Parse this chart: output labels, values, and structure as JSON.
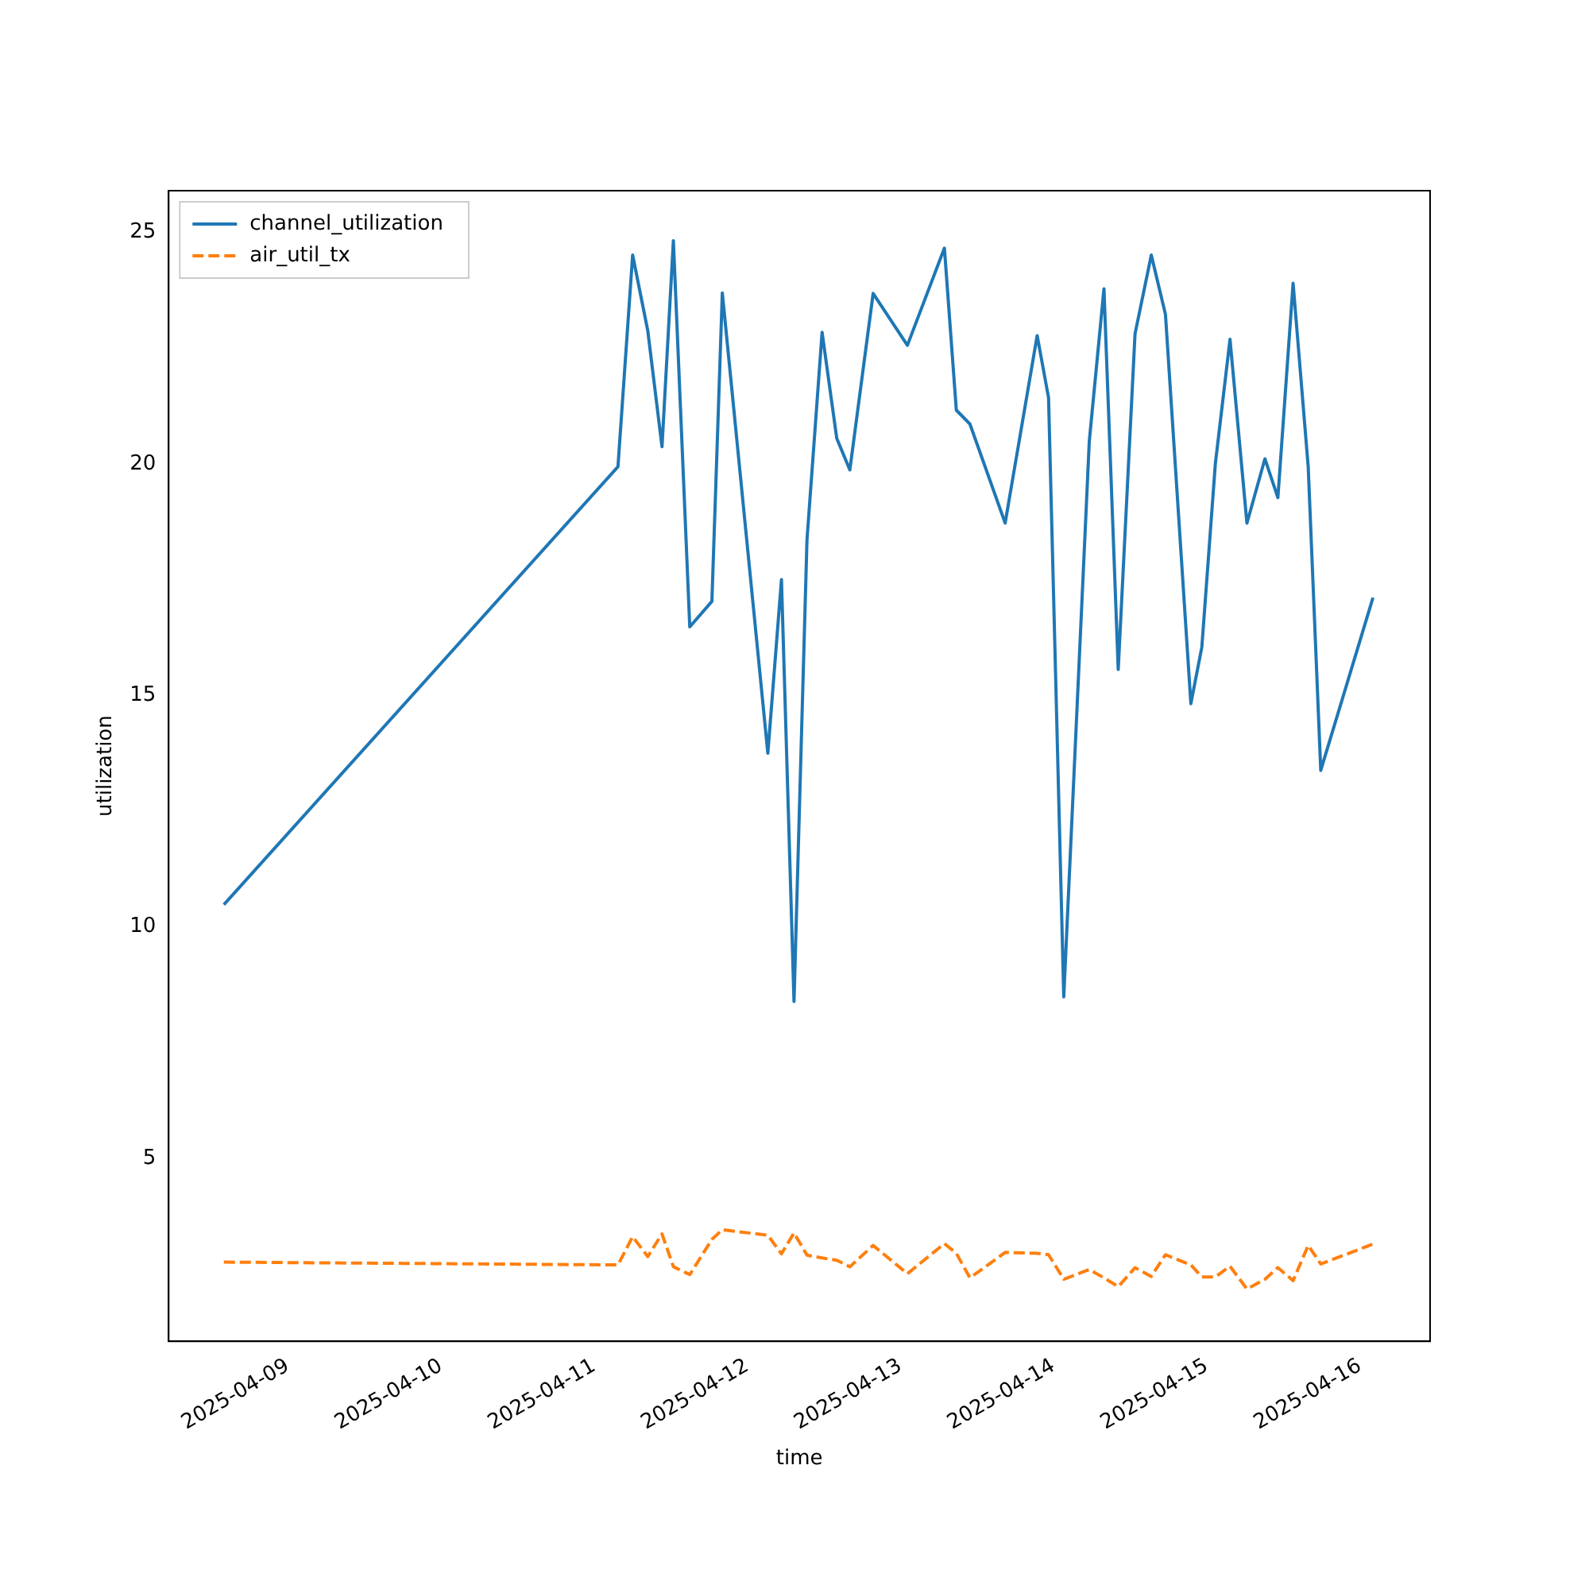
{
  "chart_data": {
    "type": "line",
    "xlabel": "time",
    "ylabel": "utilization",
    "x": [
      "2025-04-08T14:00",
      "2025-04-11T03:45",
      "2025-04-11T06:03",
      "2025-04-11T08:25",
      "2025-04-11T10:39",
      "2025-04-11T12:26",
      "2025-04-11T15:00",
      "2025-04-11T18:28",
      "2025-04-11T20:06",
      "2025-04-12T03:14",
      "2025-04-12T05:22",
      "2025-04-12T07:20",
      "2025-04-12T09:22",
      "2025-04-12T11:44",
      "2025-04-12T14:02",
      "2025-04-12T16:05",
      "2025-04-12T19:44",
      "2025-04-13T01:06",
      "2025-04-13T06:54",
      "2025-04-13T08:46",
      "2025-04-13T10:54",
      "2025-04-13T16:25",
      "2025-04-13T21:26",
      "2025-04-13T23:13",
      "2025-04-14T01:36",
      "2025-04-14T05:36",
      "2025-04-14T07:54",
      "2025-04-14T10:08",
      "2025-04-14T12:46",
      "2025-04-14T15:19",
      "2025-04-14T17:32",
      "2025-04-14T21:31",
      "2025-04-14T23:14",
      "2025-04-15T01:21",
      "2025-04-15T03:39",
      "2025-04-15T06:18",
      "2025-04-15T09:07",
      "2025-04-15T11:09",
      "2025-04-15T13:32",
      "2025-04-15T15:54",
      "2025-04-15T17:52",
      "2025-04-16T02:03"
    ],
    "series": [
      {
        "name": "channel_utilization",
        "color": "#1f77b4",
        "line_style": "solid",
        "values": [
          10.48,
          19.94,
          24.51,
          22.88,
          20.37,
          24.82,
          16.48,
          17.03,
          23.69,
          13.75,
          17.5,
          8.39,
          18.36,
          22.84,
          20.55,
          19.87,
          23.68,
          22.56,
          24.66,
          21.16,
          20.86,
          18.72,
          22.77,
          21.43,
          8.49,
          20.49,
          23.78,
          15.56,
          22.81,
          24.51,
          23.23,
          14.82,
          16.04,
          20.0,
          22.69,
          18.72,
          20.11,
          19.27,
          23.9,
          19.94,
          13.38,
          17.11
        ]
      },
      {
        "name": "air_util_tx",
        "color": "#ff7f0e",
        "line_style": "dashed",
        "values": [
          2.76,
          2.7,
          3.31,
          2.88,
          3.37,
          2.66,
          2.49,
          3.25,
          3.46,
          3.34,
          2.94,
          3.39,
          2.91,
          2.85,
          2.8,
          2.66,
          3.12,
          2.51,
          3.16,
          2.95,
          2.42,
          2.97,
          2.95,
          2.92,
          2.39,
          2.6,
          2.42,
          2.23,
          2.64,
          2.45,
          2.92,
          2.7,
          2.44,
          2.44,
          2.67,
          2.18,
          2.39,
          2.64,
          2.36,
          3.12,
          2.72,
          3.15
        ]
      }
    ],
    "xlim": [
      "2025-04-08T05:21",
      "2025-04-16T11:00"
    ],
    "xticks": [
      "2025-04-09",
      "2025-04-10",
      "2025-04-11",
      "2025-04-12",
      "2025-04-13",
      "2025-04-14",
      "2025-04-15",
      "2025-04-16"
    ],
    "ylim": [
      1.05,
      25.9
    ],
    "yticks": [
      5,
      10,
      15,
      20,
      25
    ],
    "legend": "top left",
    "marker": "none",
    "grid": false
  }
}
